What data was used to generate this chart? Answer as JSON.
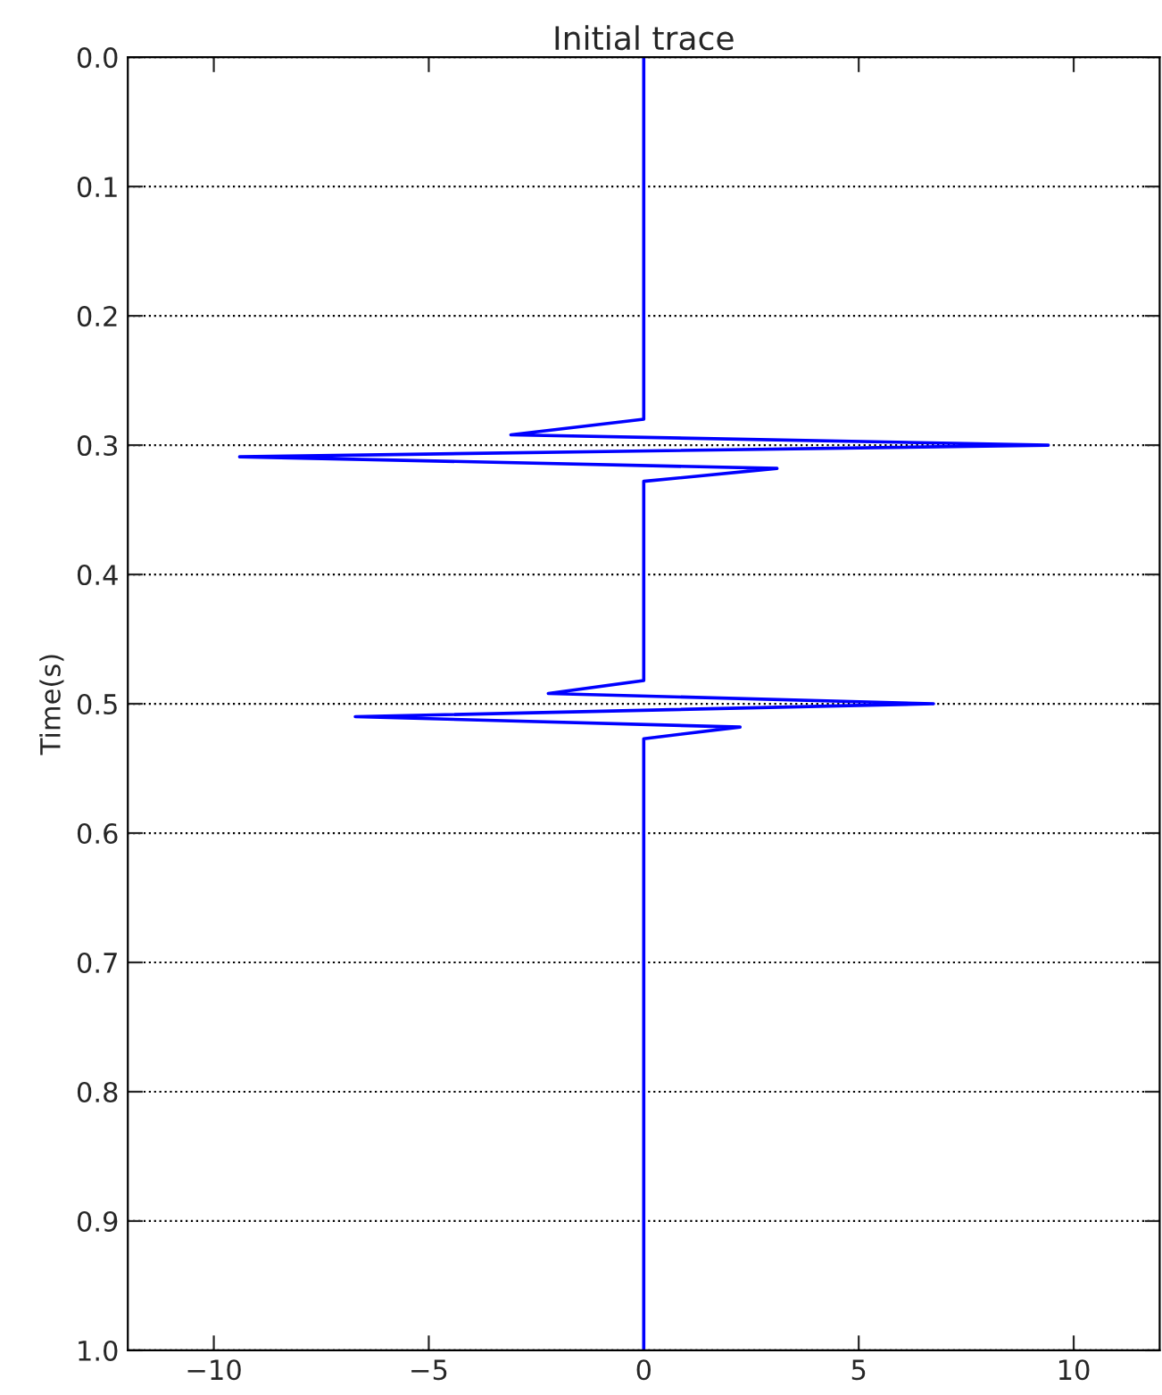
{
  "chart_data": {
    "type": "line",
    "title": "Initial trace",
    "ylabel": "Time(s)",
    "series": [
      {
        "color": "#0000ff",
        "x": [
          0,
          0,
          -3.09,
          9.41,
          -9.4,
          3.1,
          0,
          0,
          -2.22,
          6.74,
          -6.71,
          2.24,
          0,
          0
        ],
        "values": [
          0,
          0.28,
          0.292,
          0.3,
          0.309,
          0.318,
          0.328,
          0.482,
          0.492,
          0.5,
          0.51,
          0.518,
          0.527,
          1.0
        ]
      }
    ],
    "xlim": [
      -12,
      12
    ],
    "xticks": [
      {
        "value": -10,
        "label": "−10"
      },
      {
        "value": -5,
        "label": "−5"
      },
      0,
      5,
      10
    ],
    "ylim": [
      1.0,
      0.0
    ],
    "yticks": [
      {
        "value": 0,
        "label": "0.0"
      },
      0.1,
      0.2,
      0.3,
      0.4,
      0.5,
      0.6,
      0.7,
      0.8,
      0.9,
      {
        "value": 1,
        "label": "1.0"
      }
    ],
    "grid": "y",
    "line_style": "solid"
  }
}
